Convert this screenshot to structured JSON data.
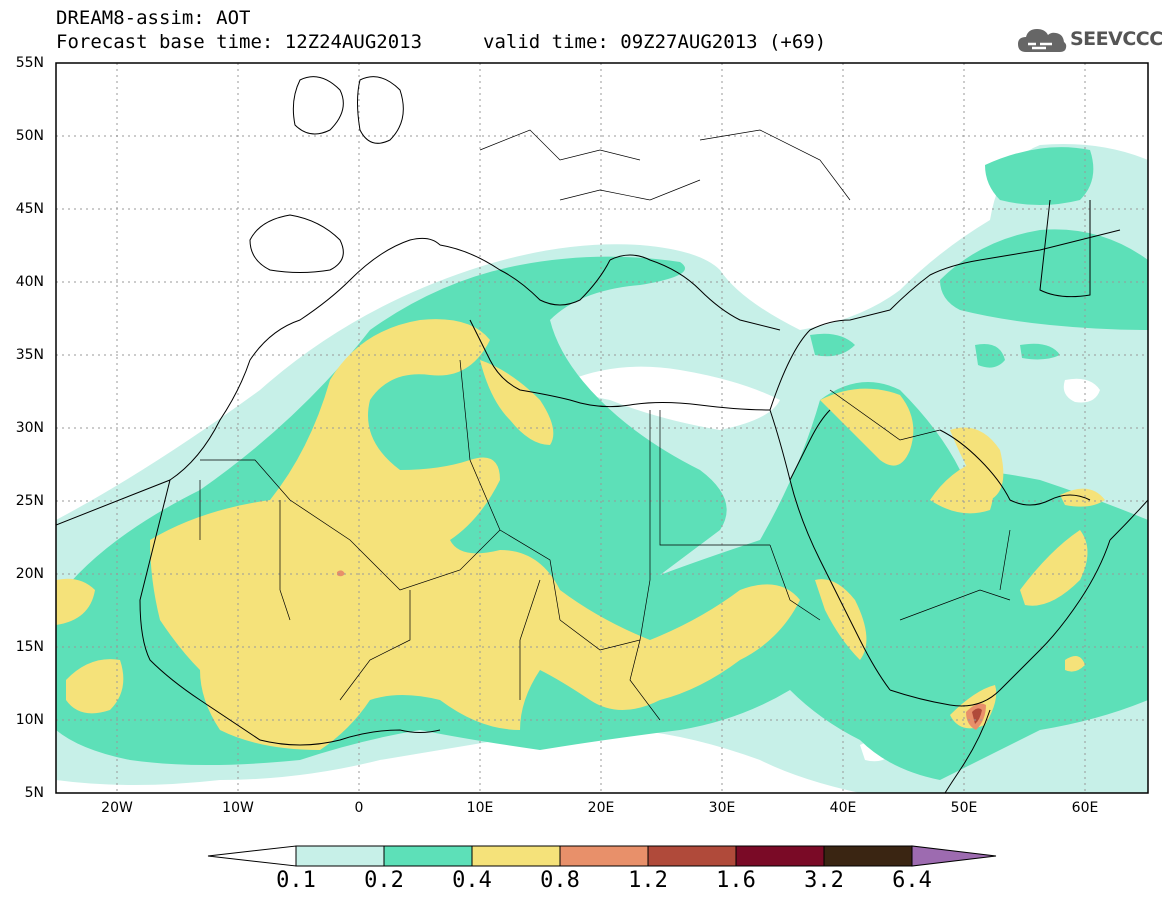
{
  "header": {
    "title_line1": "DREAM8-assim: AOT",
    "title_line2": "Forecast base time: 12Z24AUG2013",
    "valid_time": "valid time: 09Z27AUG2013 (+69)"
  },
  "logo": {
    "text": "SEEVCCC",
    "icon": "cloud-icon"
  },
  "map": {
    "lat_labels": [
      "55N",
      "50N",
      "45N",
      "40N",
      "35N",
      "30N",
      "25N",
      "20N",
      "15N",
      "10N",
      "5N"
    ],
    "lon_labels": [
      "20W",
      "10W",
      "0",
      "10E",
      "20E",
      "30E",
      "40E",
      "50E",
      "60E"
    ]
  },
  "colorbar": {
    "labels": [
      "0.1",
      "0.2",
      "0.4",
      "0.8",
      "1.2",
      "1.6",
      "3.2",
      "6.4"
    ],
    "colors": [
      "#ffffff",
      "#c7f0e8",
      "#5de0b8",
      "#f5e27a",
      "#e8906a",
      "#b04a3a",
      "#7a0a26",
      "#3a2512",
      "#9d6bb0"
    ]
  },
  "colors": {
    "low": "#c7f0e8",
    "mid": "#5de0b8",
    "high": "#f5e27a",
    "higher": "#e8906a",
    "peak": "#b04a3a"
  }
}
